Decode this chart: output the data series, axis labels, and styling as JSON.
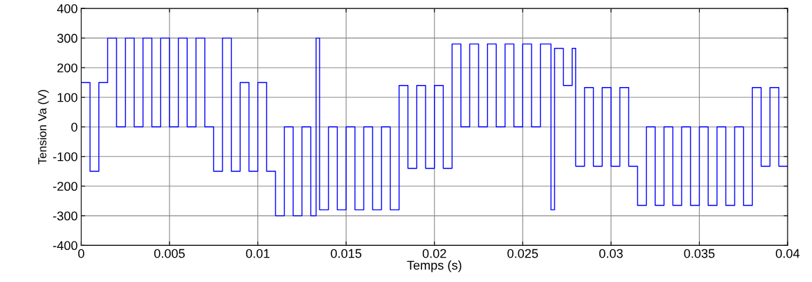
{
  "chart_data": {
    "type": "step",
    "xlabel": "Temps (s)",
    "ylabel": "Tension Va (V)",
    "xlim": [
      0,
      0.04
    ],
    "xticks": [
      0,
      0.005,
      0.01,
      0.015,
      0.02,
      0.025,
      0.03,
      0.035,
      0.04
    ],
    "ylim": [
      -400,
      400
    ],
    "yticks": [
      -400,
      -300,
      -200,
      -100,
      0,
      100,
      200,
      300,
      400
    ],
    "grid": true,
    "line_style": "solid",
    "marker": "none",
    "x": [
      0,
      0.0005,
      0.001,
      0.0015,
      0.002,
      0.0025,
      0.003,
      0.0035,
      0.004,
      0.0045,
      0.005,
      0.0055,
      0.006,
      0.0065,
      0.007,
      0.0075,
      0.008,
      0.0085,
      0.009,
      0.0095,
      0.01,
      0.0105,
      0.011,
      0.0115,
      0.012,
      0.0125,
      0.013,
      0.0133,
      0.0135,
      0.014,
      0.0145,
      0.015,
      0.0155,
      0.016,
      0.0165,
      0.017,
      0.0175,
      0.018,
      0.0185,
      0.019,
      0.0195,
      0.02,
      0.0205,
      0.021,
      0.0215,
      0.022,
      0.0225,
      0.023,
      0.0235,
      0.024,
      0.0245,
      0.025,
      0.0255,
      0.026,
      0.0266,
      0.0268,
      0.0273,
      0.0278,
      0.028,
      0.0285,
      0.029,
      0.0295,
      0.03,
      0.0305,
      0.031,
      0.0315,
      0.032,
      0.0325,
      0.033,
      0.0335,
      0.034,
      0.0345,
      0.035,
      0.0355,
      0.036,
      0.0365,
      0.037,
      0.0375,
      0.038,
      0.0385,
      0.039,
      0.0395,
      0.04
    ],
    "series": [
      {
        "color": "#0000ff",
        "values": [
          150,
          -150,
          150,
          300,
          0,
          300,
          0,
          300,
          0,
          300,
          0,
          300,
          0,
          300,
          0,
          -150,
          300,
          -150,
          150,
          -150,
          150,
          -150,
          -300,
          0,
          -300,
          0,
          -300,
          300,
          -280,
          0,
          -280,
          0,
          -280,
          0,
          -280,
          0,
          -280,
          140,
          -140,
          140,
          -140,
          140,
          -140,
          280,
          0,
          280,
          0,
          280,
          0,
          280,
          0,
          280,
          0,
          280,
          -280,
          265,
          140,
          265,
          -133,
          133,
          -133,
          133,
          -133,
          133,
          -133,
          -265,
          0,
          -265,
          0,
          -265,
          0,
          -265,
          0,
          -265,
          0,
          -265,
          0,
          -265,
          133,
          -133,
          133,
          -133,
          -133
        ]
      }
    ]
  }
}
